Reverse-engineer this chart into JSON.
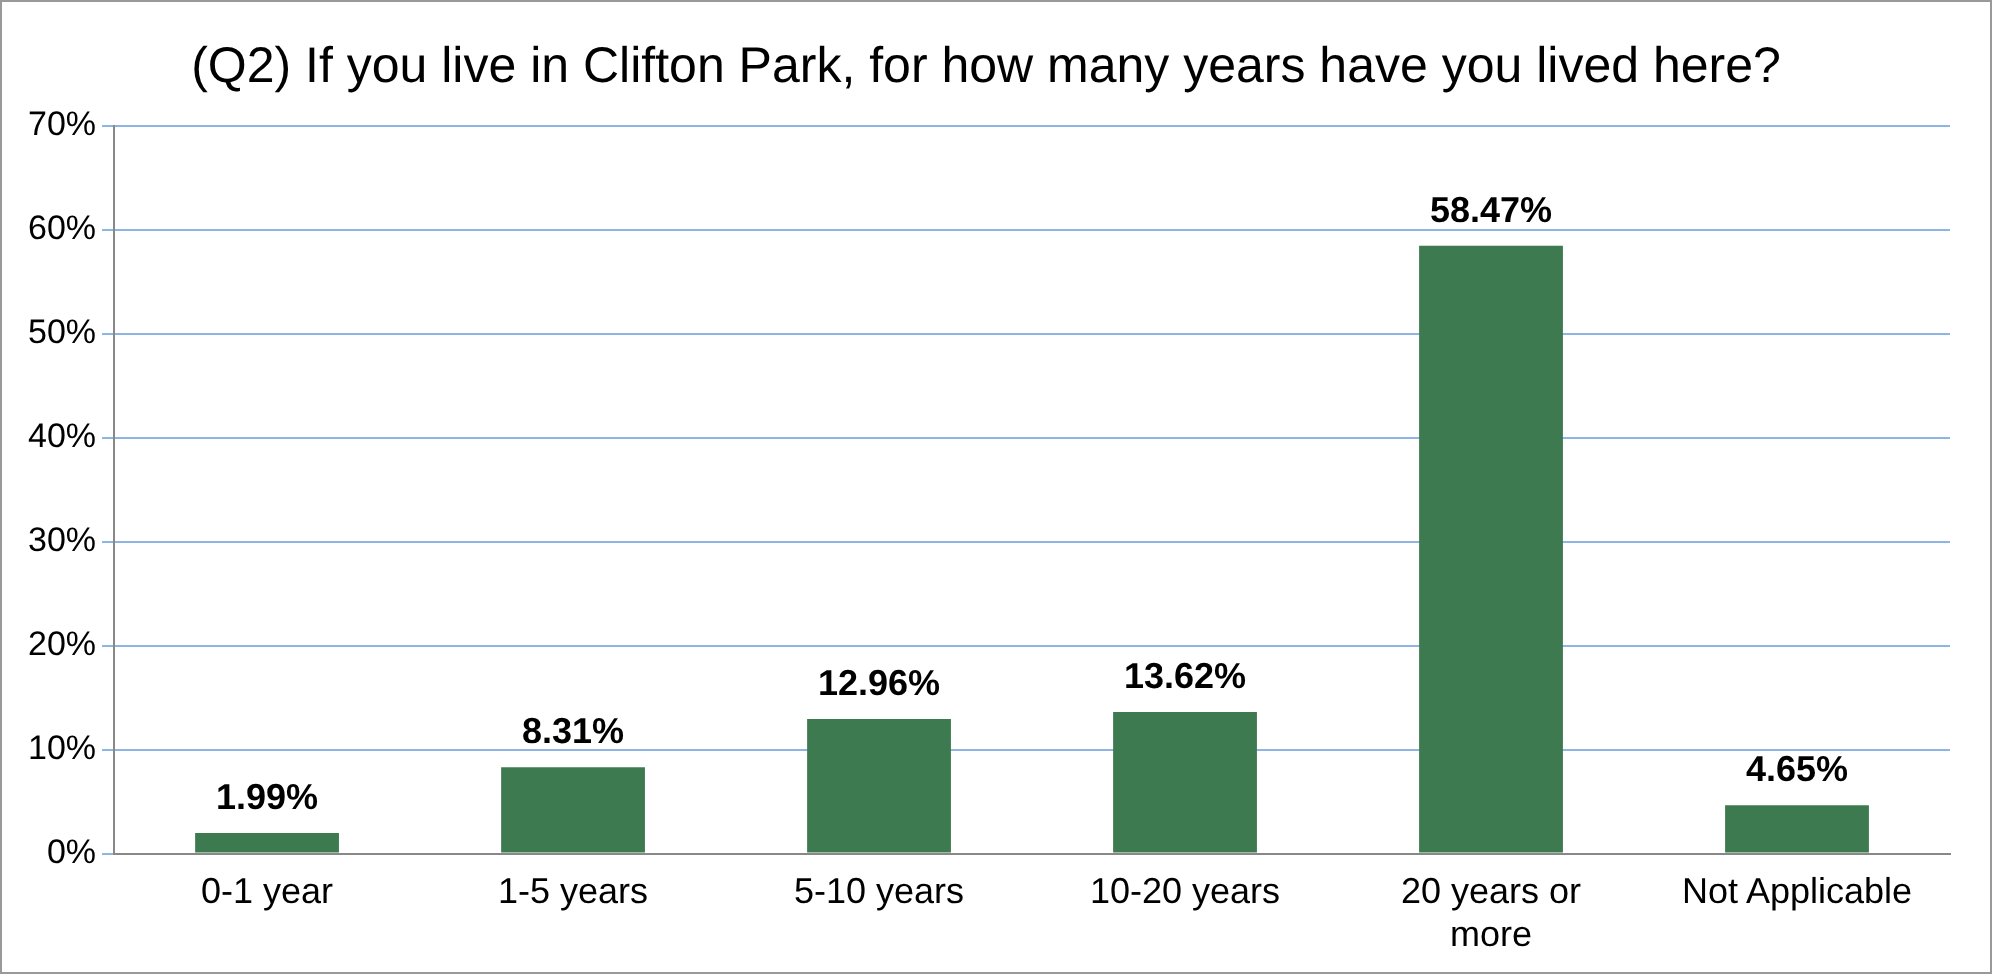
{
  "chart_data": {
    "type": "bar",
    "title": "(Q2) If you live in Clifton Park, for how many years have you lived here?",
    "categories": [
      "0-1 year",
      "1-5 years",
      "5-10 years",
      "10-20 years",
      "20 years or more",
      "Not Applicable"
    ],
    "values": [
      1.99,
      8.31,
      12.96,
      13.62,
      58.47,
      4.65
    ],
    "value_labels": [
      "1.99%",
      "8.31%",
      "12.96%",
      "13.62%",
      "58.47%",
      "4.65%"
    ],
    "color": "#3d7a50",
    "ylim": [
      0,
      70
    ],
    "yticks": [
      {
        "value": 0,
        "label": "0%"
      },
      {
        "value": 10,
        "label": "10%"
      },
      {
        "value": 20,
        "label": "20%"
      },
      {
        "value": 30,
        "label": "30%"
      },
      {
        "value": 40,
        "label": "40%"
      },
      {
        "value": 50,
        "label": "50%"
      },
      {
        "value": 60,
        "label": "60%"
      },
      {
        "value": 70,
        "label": "70%"
      }
    ],
    "grid": "y",
    "legend": false
  }
}
